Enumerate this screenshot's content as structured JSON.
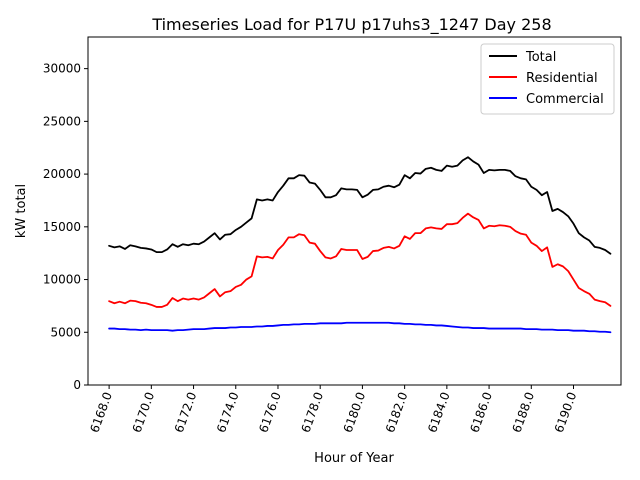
{
  "chart_data": {
    "type": "line",
    "title": "Timeseries Load for P17U p17uhs3_1247  Day 258",
    "xlabel": "Hour of Year",
    "ylabel": "kW total",
    "xlim": [
      6167.0,
      6192.25
    ],
    "ylim": [
      0,
      33000
    ],
    "x_ticks": [
      6168.0,
      6170.0,
      6172.0,
      6174.0,
      6176.0,
      6178.0,
      6180.0,
      6182.0,
      6184.0,
      6186.0,
      6188.0,
      6190.0
    ],
    "x_tick_labels": [
      "6168.0",
      "6170.0",
      "6172.0",
      "6174.0",
      "6176.0",
      "6178.0",
      "6180.0",
      "6182.0",
      "6184.0",
      "6186.0",
      "6188.0",
      "6190.0"
    ],
    "y_ticks": [
      0,
      5000,
      10000,
      15000,
      20000,
      25000,
      30000
    ],
    "y_tick_labels": [
      "0",
      "5000",
      "10000",
      "15000",
      "20000",
      "25000",
      "30000"
    ],
    "legend_position": "top-right",
    "grid": false,
    "x": [
      6168.0,
      6168.25,
      6168.5,
      6168.75,
      6169.0,
      6169.25,
      6169.5,
      6169.75,
      6170.0,
      6170.25,
      6170.5,
      6170.75,
      6171.0,
      6171.25,
      6171.5,
      6171.75,
      6172.0,
      6172.25,
      6172.5,
      6172.75,
      6173.0,
      6173.25,
      6173.5,
      6173.75,
      6174.0,
      6174.25,
      6174.5,
      6174.75,
      6175.0,
      6175.25,
      6175.5,
      6175.75,
      6176.0,
      6176.25,
      6176.5,
      6176.75,
      6177.0,
      6177.25,
      6177.5,
      6177.75,
      6178.0,
      6178.25,
      6178.5,
      6178.75,
      6179.0,
      6179.25,
      6179.5,
      6179.75,
      6180.0,
      6180.25,
      6180.5,
      6180.75,
      6181.0,
      6181.25,
      6181.5,
      6181.75,
      6182.0,
      6182.25,
      6182.5,
      6182.75,
      6183.0,
      6183.25,
      6183.5,
      6183.75,
      6184.0,
      6184.25,
      6184.5,
      6184.75,
      6185.0,
      6185.25,
      6185.5,
      6185.75,
      6186.0,
      6186.25,
      6186.5,
      6186.75,
      6187.0,
      6187.25,
      6187.5,
      6187.75,
      6188.0,
      6188.25,
      6188.5,
      6188.75,
      6189.0,
      6189.25,
      6189.5,
      6189.75,
      6190.0,
      6190.25,
      6190.5,
      6190.75,
      6191.0,
      6191.25,
      6191.5,
      6191.75
    ],
    "series": [
      {
        "name": "Total",
        "color": "#000000",
        "values": [
          13200,
          13050,
          13150,
          12900,
          13250,
          13150,
          13000,
          12950,
          12850,
          12600,
          12600,
          12850,
          13350,
          13100,
          13350,
          13250,
          13400,
          13350,
          13600,
          14000,
          14400,
          13800,
          14250,
          14300,
          14700,
          15000,
          15400,
          15800,
          17600,
          17500,
          17600,
          17500,
          18300,
          18900,
          19600,
          19600,
          19900,
          19850,
          19200,
          19100,
          18500,
          17800,
          17800,
          18000,
          18650,
          18550,
          18550,
          18500,
          17800,
          18050,
          18500,
          18550,
          18800,
          18900,
          18750,
          19000,
          19900,
          19600,
          20100,
          20050,
          20500,
          20600,
          20400,
          20300,
          20800,
          20700,
          20800,
          21300,
          21600,
          21200,
          20900,
          20100,
          20400,
          20350,
          20400,
          20400,
          20300,
          19800,
          19600,
          19500,
          18800,
          18500,
          18000,
          18300,
          16500,
          16700,
          16400,
          16000,
          15300,
          14400,
          14000,
          13700,
          13100,
          13000,
          12800,
          12450
        ]
      },
      {
        "name": "Residential",
        "color": "#ff0000",
        "values": [
          7950,
          7750,
          7900,
          7750,
          8000,
          7950,
          7800,
          7750,
          7600,
          7400,
          7400,
          7600,
          8250,
          7950,
          8200,
          8100,
          8200,
          8100,
          8300,
          8700,
          9100,
          8400,
          8800,
          8900,
          9300,
          9500,
          10000,
          10300,
          12200,
          12100,
          12150,
          12000,
          12800,
          13300,
          14000,
          14000,
          14300,
          14200,
          13500,
          13400,
          12700,
          12100,
          12000,
          12200,
          12900,
          12800,
          12800,
          12800,
          11950,
          12150,
          12700,
          12750,
          13000,
          13100,
          12950,
          13200,
          14100,
          13850,
          14400,
          14400,
          14850,
          14950,
          14850,
          14800,
          15250,
          15250,
          15350,
          15850,
          16250,
          15900,
          15650,
          14850,
          15100,
          15050,
          15150,
          15100,
          15000,
          14600,
          14350,
          14250,
          13500,
          13200,
          12700,
          13050,
          11200,
          11450,
          11250,
          10800,
          10000,
          9200,
          8900,
          8650,
          8100,
          7950,
          7850,
          7500
        ]
      },
      {
        "name": "Commercial",
        "color": "#0000ff",
        "values": [
          5350,
          5350,
          5300,
          5300,
          5250,
          5250,
          5200,
          5250,
          5200,
          5200,
          5200,
          5200,
          5150,
          5200,
          5200,
          5250,
          5300,
          5300,
          5300,
          5350,
          5400,
          5400,
          5400,
          5450,
          5450,
          5500,
          5500,
          5500,
          5550,
          5550,
          5600,
          5600,
          5650,
          5700,
          5700,
          5750,
          5750,
          5800,
          5800,
          5800,
          5850,
          5850,
          5850,
          5850,
          5850,
          5900,
          5900,
          5900,
          5900,
          5900,
          5900,
          5900,
          5900,
          5900,
          5850,
          5850,
          5800,
          5800,
          5750,
          5750,
          5700,
          5700,
          5650,
          5650,
          5600,
          5550,
          5500,
          5450,
          5450,
          5400,
          5400,
          5400,
          5350,
          5350,
          5350,
          5350,
          5350,
          5350,
          5350,
          5300,
          5300,
          5300,
          5250,
          5250,
          5250,
          5200,
          5200,
          5200,
          5150,
          5150,
          5150,
          5100,
          5100,
          5050,
          5050,
          5000
        ]
      }
    ]
  }
}
